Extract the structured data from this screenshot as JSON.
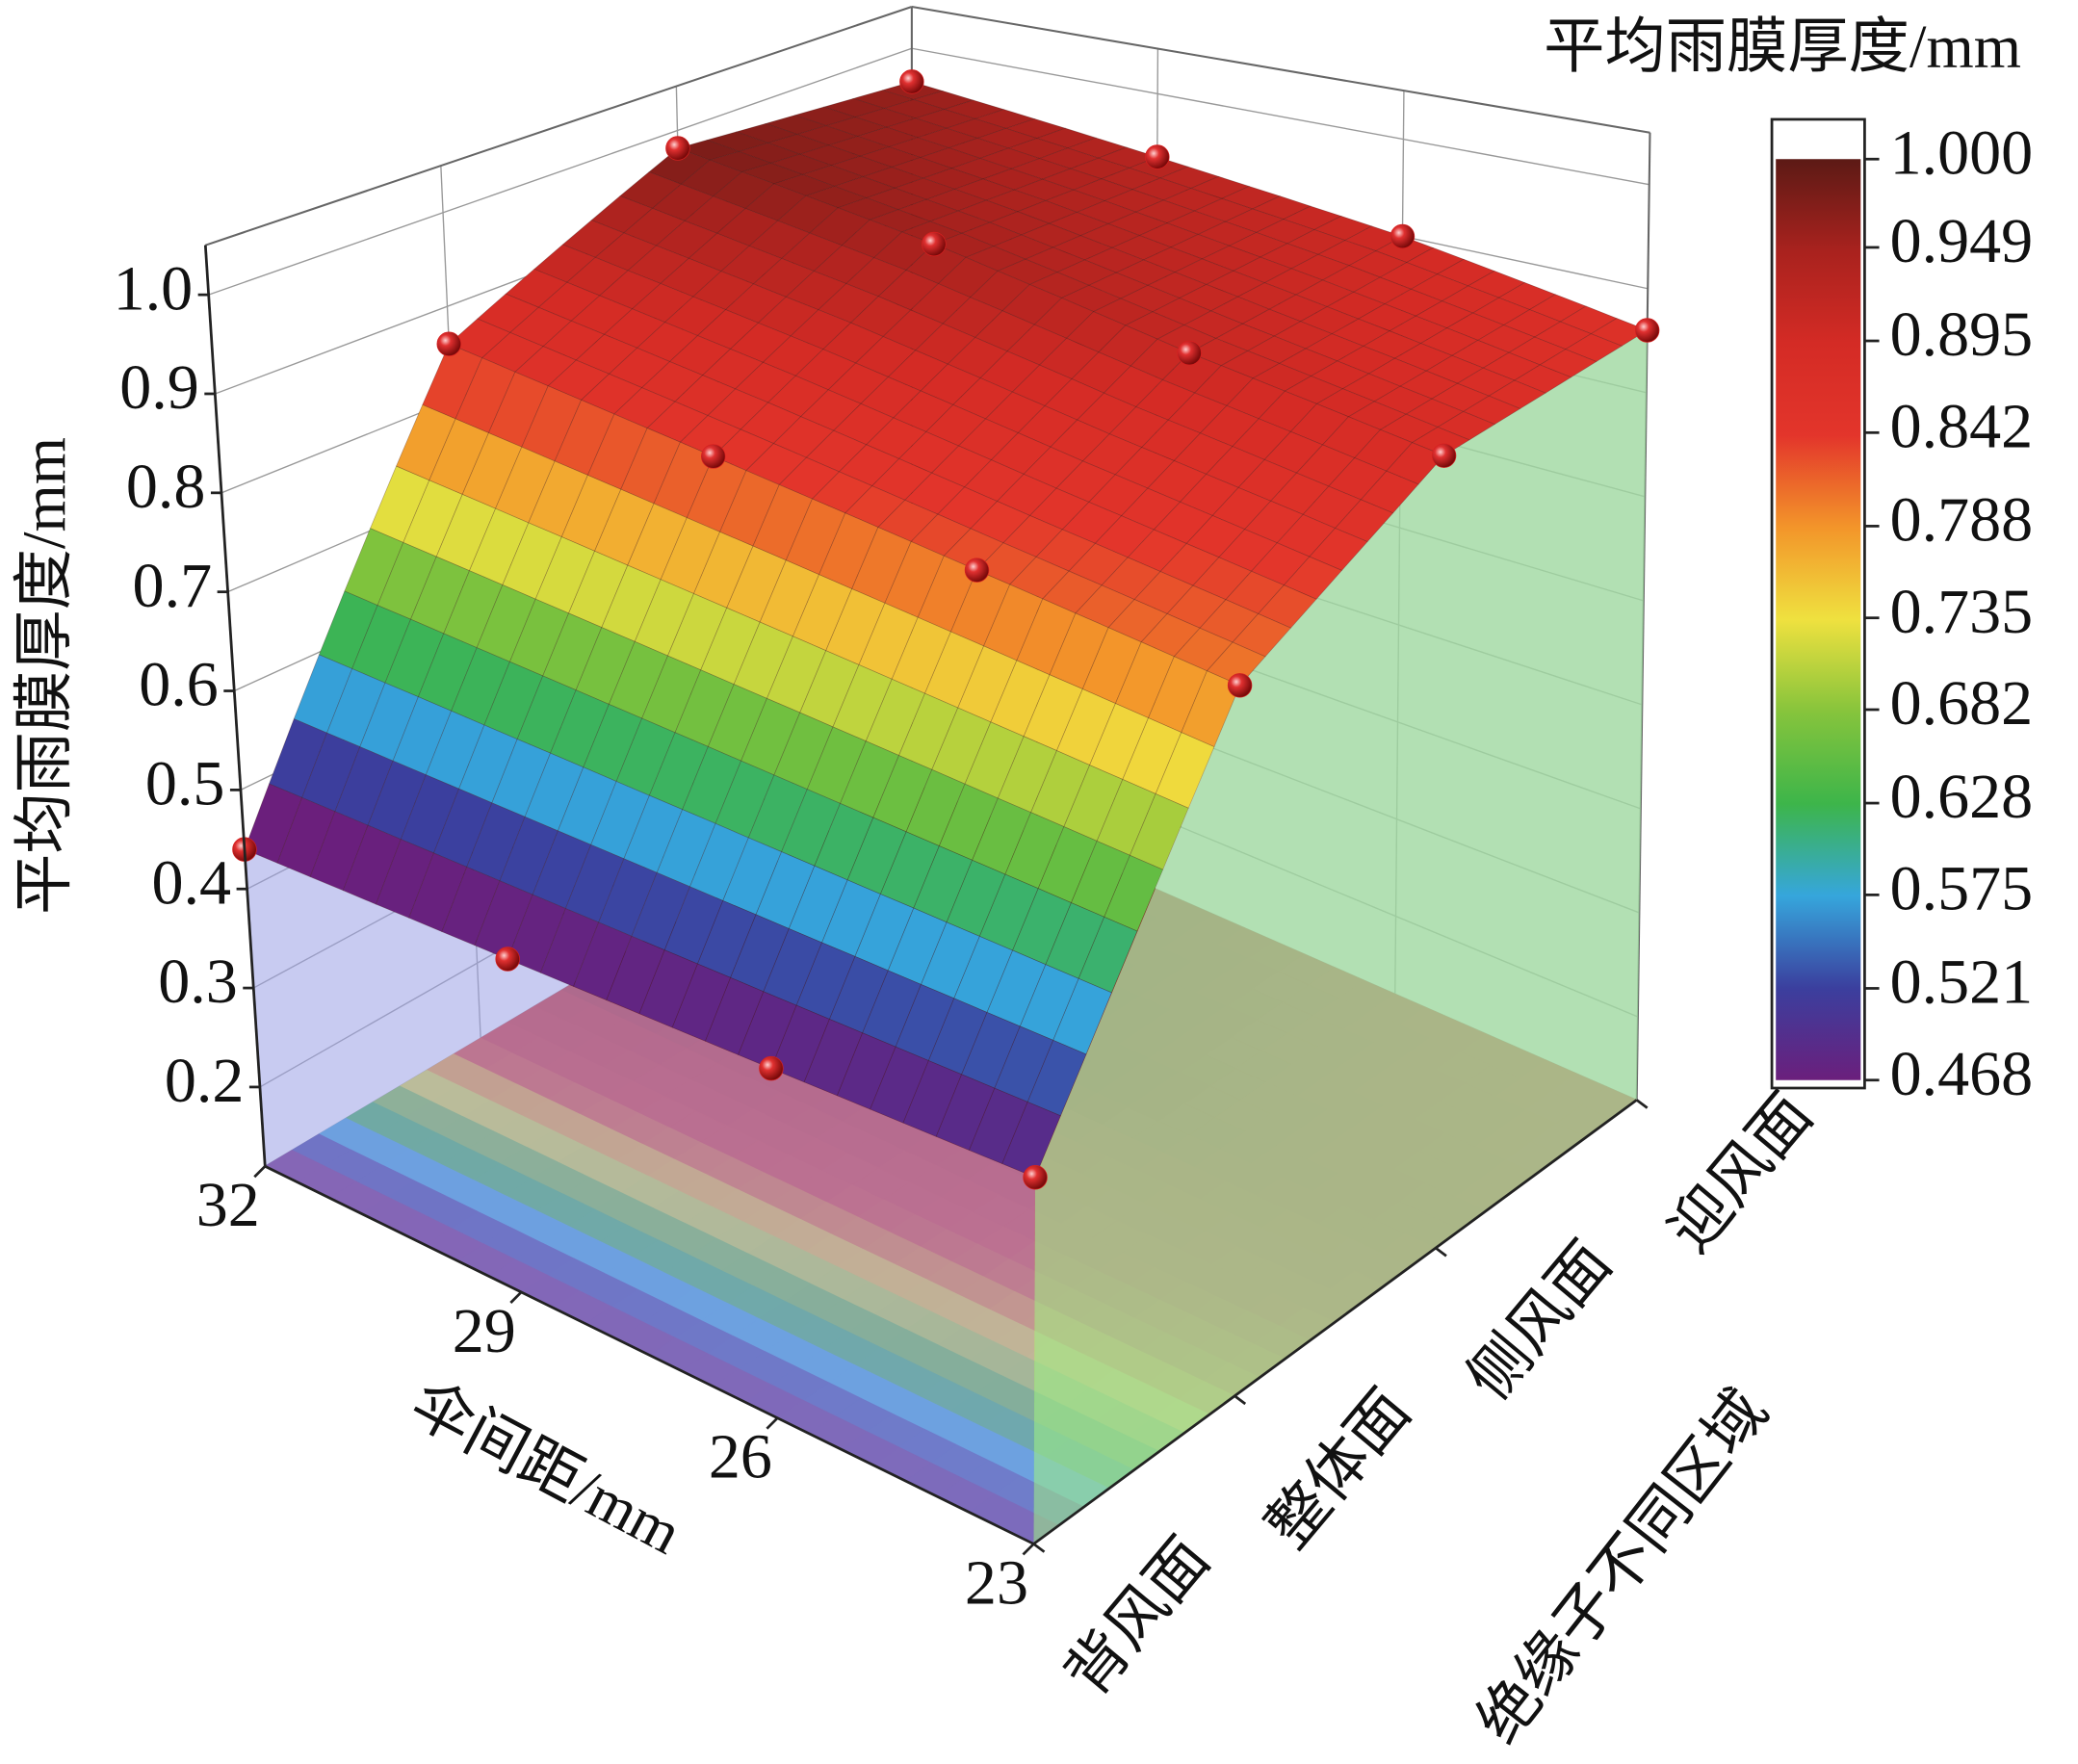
{
  "chart_data": {
    "type": "surface3d",
    "z_label": "平均雨膜厚度/mm",
    "x_label": "伞间距/mm",
    "y_label": "绝缘子不同区域",
    "x": [
      23,
      26,
      29,
      32
    ],
    "xlim": [
      23,
      32
    ],
    "xticks": [
      23,
      26,
      29,
      32
    ],
    "categories": [
      "背风面",
      "整体面",
      "侧风面",
      "迎风面"
    ],
    "z": [
      [
        0.47,
        0.46,
        0.45,
        0.44
      ],
      [
        0.8,
        0.82,
        0.84,
        0.86
      ],
      [
        0.88,
        0.91,
        0.95,
        0.98
      ],
      [
        0.86,
        0.9,
        0.93,
        0.96
      ]
    ],
    "zlim": [
      0.12,
      1.05
    ],
    "zticks": [
      0.2,
      0.3,
      0.4,
      0.5,
      0.6,
      0.7,
      0.8,
      0.9,
      {
        "value": 1,
        "label": "1.0"
      }
    ],
    "colorbar_title": "平均雨膜厚度/mm",
    "colorbar_lim": [
      0.468,
      1
    ],
    "colorbar_ticks": [
      0.468,
      0.521,
      0.575,
      0.628,
      0.682,
      0.735,
      0.788,
      0.842,
      0.895,
      0.949,
      {
        "value": 1,
        "label": "1.000"
      }
    ],
    "colormap": [
      "#6b1f7c",
      "#3b3f9e",
      "#36a6dc",
      "#3db54a",
      "#86c43c",
      "#efe13f",
      "#f3952a",
      "#e3352b",
      "#d42b25",
      "#a9221e",
      "#5c1a15"
    ],
    "marker_color": "#d82020"
  }
}
